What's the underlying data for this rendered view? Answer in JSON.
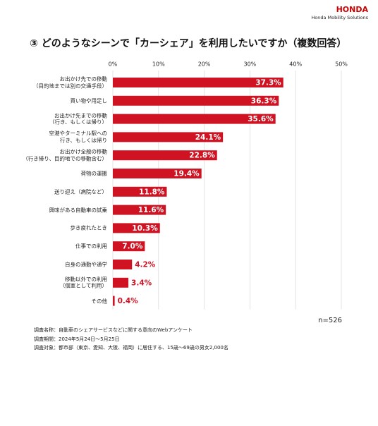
{
  "brand": {
    "name": "HONDA",
    "tagline": "Honda Mobility Solutions"
  },
  "chart_data": {
    "type": "barh",
    "title": "③ どのようなシーンで「カーシェア」を利用したいですか（複数回答）",
    "categories": [
      "お出かけ先での移動\n（目的地までは別の交通手段）",
      "買い物や用足し",
      "お出かけ先までの移動\n（行き、もしくは帰り）",
      "空港やターミナル駅への\n行き、もしくは帰り",
      "お出かけ全般の移動\n（行き帰り、目的地での移動含む）",
      "荷物の運搬",
      "送り迎え（病院など）",
      "興味がある自動車の試乗",
      "歩き疲れたとき",
      "仕事での利用",
      "自身の通勤や通学",
      "移動以外での利用\n（個室として利用）",
      "その他"
    ],
    "values": [
      37.3,
      36.3,
      35.6,
      24.1,
      22.8,
      19.4,
      11.8,
      11.6,
      10.3,
      7.0,
      4.2,
      3.4,
      0.4
    ],
    "value_labels": [
      "37.3%",
      "36.3%",
      "35.6%",
      "24.1%",
      "22.8%",
      "19.4%",
      "11.8%",
      "11.6%",
      "10.3%",
      "7.0%",
      "4.2%",
      "3.4%",
      "0.4%"
    ],
    "color": "#cf1322",
    "xlim": [
      0,
      50
    ],
    "xticks": [
      {
        "value": 0,
        "label": "0%"
      },
      {
        "value": 10,
        "label": "10%"
      },
      {
        "value": 20,
        "label": "20%"
      },
      {
        "value": 30,
        "label": "30%"
      },
      {
        "value": 40,
        "label": "40%"
      },
      {
        "value": 50,
        "label": "50%"
      }
    ],
    "grid": true,
    "annotation": "n=526",
    "notes": [
      "調査名称：自動車のシェアサービスなどに関する意向のWebアンケート",
      "調査期間：2024年5月24日〜5月25日",
      "調査対象：都市部（東京、愛知、大阪、福岡）に居住する、15歳〜69歳の男女2,000名"
    ]
  }
}
